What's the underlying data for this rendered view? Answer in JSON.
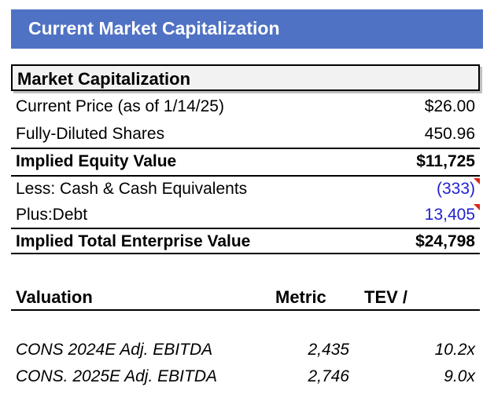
{
  "header": {
    "title": "Current Market Capitalization"
  },
  "market_cap": {
    "section_title": "Market Capitalization",
    "rows": [
      {
        "label": "Current Price (as of 1/14/25)",
        "value": "$26.00"
      },
      {
        "label": "Fully-Diluted Shares",
        "value": "450.96"
      },
      {
        "label": "Implied Equity Value",
        "value": "$11,725"
      },
      {
        "label": "Less: Cash & Cash Equivalents",
        "value": "(333)"
      },
      {
        "label": "Plus:Debt",
        "value": "13,405"
      },
      {
        "label": "Implied Total Enterprise Value",
        "value": "$24,798"
      }
    ]
  },
  "valuation": {
    "headers": {
      "valuation": "Valuation",
      "metric": "Metric",
      "tev": "TEV /"
    },
    "rows": [
      {
        "label": "CONS 2024E Adj. EBITDA",
        "metric": "2,435",
        "multiple": "10.2x"
      },
      {
        "label": "CONS. 2025E Adj. EBITDA",
        "metric": "2,746",
        "multiple": "9.0x"
      }
    ]
  },
  "colors": {
    "header_band": "#4f72c4",
    "input_blue": "#1f1fd0",
    "comment_marker": "#d9261c"
  }
}
